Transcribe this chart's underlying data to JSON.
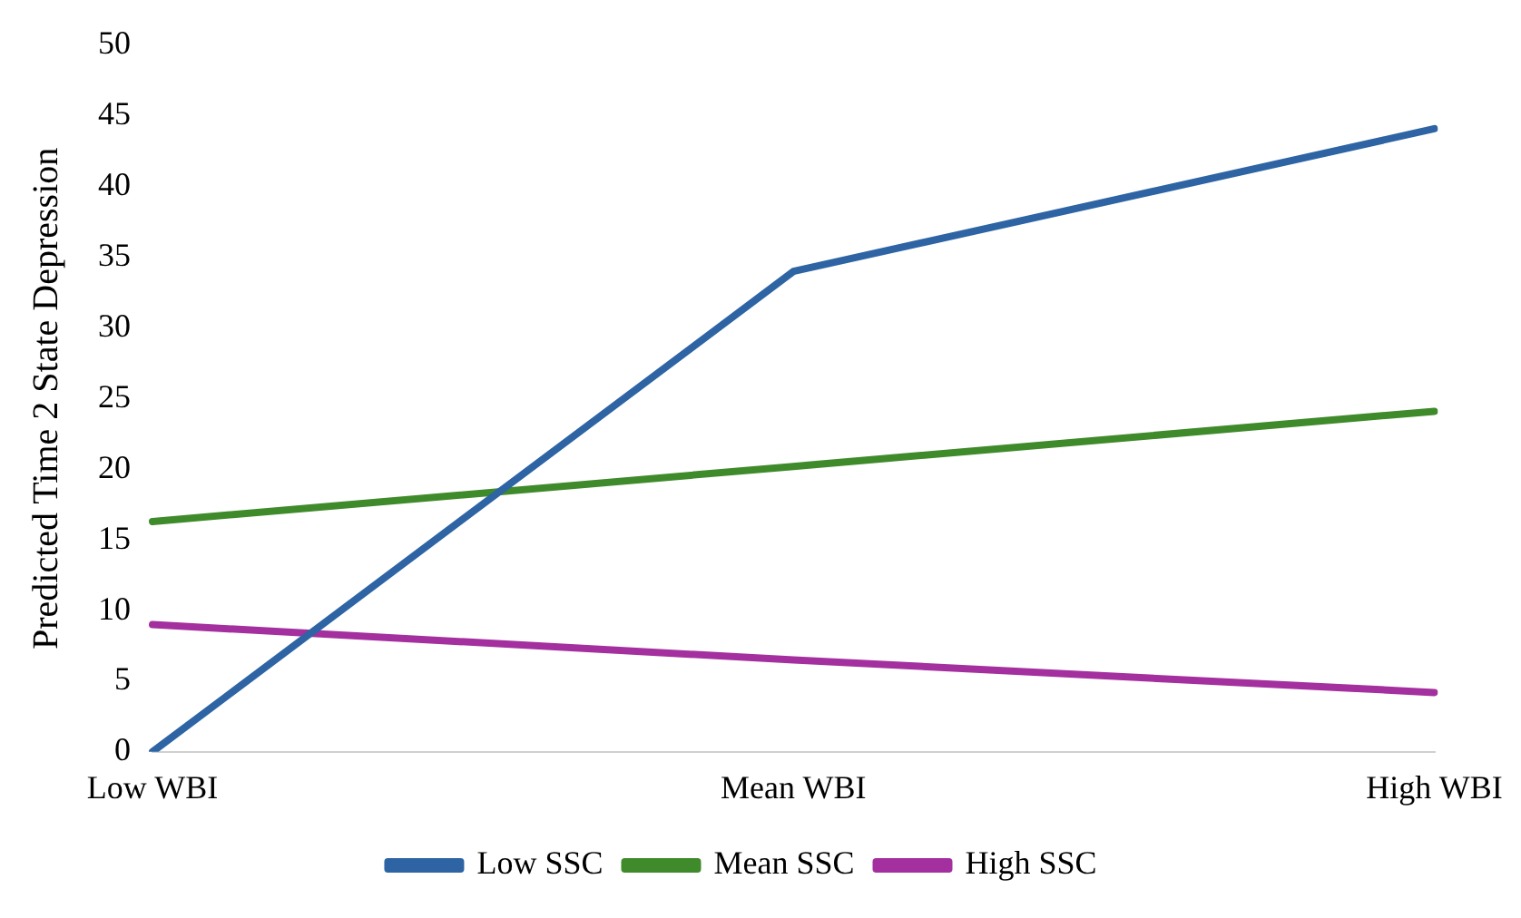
{
  "chart_data": {
    "type": "line",
    "ylabel": "Predicted Time 2 State Depression",
    "categories": [
      "Low WBI",
      "Mean WBI",
      "High WBI"
    ],
    "series": [
      {
        "name": "Low SSC",
        "color": "#2e64a4",
        "values": [
          0,
          34,
          44.1
        ]
      },
      {
        "name": "Mean SSC",
        "color": "#3f8a2a",
        "values": [
          16.3,
          20.2,
          24.1
        ]
      },
      {
        "name": "High SSC",
        "color": "#a3309e",
        "values": [
          9,
          6.5,
          4.2
        ]
      }
    ],
    "ylim": [
      0,
      50
    ],
    "yticks": [
      0,
      5,
      10,
      15,
      20,
      25,
      30,
      35,
      40,
      45,
      50
    ],
    "grid": false,
    "legend": "bottom",
    "marker": "none",
    "line_style": "solid"
  }
}
